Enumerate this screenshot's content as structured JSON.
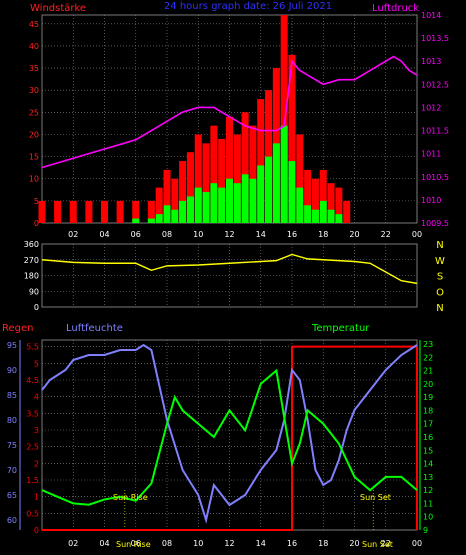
{
  "header": {
    "left_title": "Windstärke",
    "center_title": "24 hours graph date: 26 Juli 2021",
    "right_title": "Luftdruck"
  },
  "colors": {
    "wind_axis": "#ff2020",
    "wind_bar": "#ff0000",
    "gust_bar": "#00ff00",
    "pressure": "#ff00ff",
    "winddir": "#ffff00",
    "humidity": "#8080ff",
    "temperature": "#00ff00",
    "rain": "#ff0000",
    "grid": "#8a8a8a",
    "axis_text": "#ffffff",
    "sun_text": "#ffff00"
  },
  "time_ticks": [
    "02",
    "04",
    "06",
    "08",
    "10",
    "12",
    "14",
    "16",
    "18",
    "20",
    "22",
    "00"
  ],
  "charts": [
    {
      "id": "wind-pressure",
      "type": "bar+line",
      "left_axis": {
        "label": "Windstärke",
        "ticks": [
          "0",
          "5",
          "10",
          "15",
          "20",
          "25",
          "30",
          "35",
          "40",
          "45"
        ],
        "range": [
          0,
          47
        ]
      },
      "right_axis": {
        "label": "Luftdruck",
        "ticks": [
          "1009.5",
          "1010",
          "1010.5",
          "1011",
          "1011.5",
          "1012",
          "1012.5",
          "1013",
          "1013.5",
          "1014"
        ],
        "range": [
          1009.5,
          1014
        ]
      }
    },
    {
      "id": "wind-direction",
      "type": "line",
      "left_axis": {
        "ticks": [
          "0",
          "90",
          "180",
          "270",
          "360"
        ],
        "range": [
          0,
          360
        ]
      },
      "right_axis": {
        "ticks": [
          "N",
          "W",
          "S",
          "O",
          "N"
        ]
      }
    },
    {
      "id": "humidity-temp-rain",
      "type": "line",
      "top_labels": {
        "rain": "Regen",
        "humidity": "Luftfeuchte",
        "temperature": "Temperatur"
      },
      "rain_axis": {
        "ticks": [
          "0",
          "0.5",
          "1",
          "1.5",
          "2",
          "2.5",
          "3",
          "3.5",
          "4",
          "4.5",
          "5",
          "5.5"
        ],
        "range": [
          0,
          5.7
        ]
      },
      "humidity_axis": {
        "ticks": [
          "60",
          "65",
          "70",
          "75",
          "80",
          "85",
          "90",
          "95"
        ],
        "range": [
          58,
          96
        ]
      },
      "temp_axis": {
        "ticks": [
          "9",
          "10",
          "11",
          "12",
          "13",
          "14",
          "15",
          "16",
          "17",
          "18",
          "19",
          "20",
          "21",
          "22",
          "23"
        ],
        "range": [
          9,
          23.3
        ]
      },
      "sun_labels": {
        "rise": "Sun Rise",
        "set": "Sun Set",
        "rise_axis": "Sun Rise",
        "set_axis": "Sun Set"
      }
    }
  ],
  "chart_data": [
    {
      "type": "line",
      "title": "Luftdruck",
      "ylim": [
        1009.5,
        1014
      ],
      "x_hours": [
        0,
        1,
        2,
        3,
        4,
        5,
        6,
        7,
        8,
        9,
        10,
        11,
        12,
        13,
        14,
        14.5,
        15,
        15.5,
        16,
        16.5,
        17,
        18,
        19,
        20,
        21,
        22,
        22.5,
        23,
        23.5,
        24
      ],
      "values": [
        1010.7,
        1010.8,
        1010.9,
        1011.0,
        1011.1,
        1011.2,
        1011.3,
        1011.5,
        1011.7,
        1011.9,
        1012.0,
        1012.0,
        1011.8,
        1011.6,
        1011.5,
        1011.5,
        1011.5,
        1011.6,
        1013.0,
        1012.8,
        1012.7,
        1012.5,
        1012.6,
        1012.6,
        1012.8,
        1013.0,
        1013.1,
        1013.0,
        1012.8,
        1012.7
      ]
    },
    {
      "type": "bar",
      "title": "Windstärke",
      "ylim": [
        0,
        47
      ],
      "x_hours": [
        0,
        1,
        2,
        3,
        4,
        5,
        6,
        7,
        7.5,
        8,
        8.5,
        9,
        9.5,
        10,
        10.5,
        11,
        11.5,
        12,
        12.5,
        13,
        13.5,
        14,
        14.5,
        15,
        15.5,
        16,
        16.5,
        17,
        17.5,
        18,
        18.5,
        19,
        19.5,
        20,
        21,
        22,
        23,
        24
      ],
      "series": [
        {
          "name": "wind",
          "values": [
            5,
            5,
            5,
            5,
            5,
            5,
            5,
            5,
            8,
            12,
            10,
            14,
            16,
            20,
            18,
            22,
            19,
            24,
            20,
            25,
            22,
            28,
            30,
            35,
            47,
            38,
            20,
            12,
            10,
            12,
            9,
            8,
            5,
            0,
            0,
            0,
            0,
            0
          ]
        },
        {
          "name": "gust",
          "values": [
            0,
            0,
            0,
            0,
            0,
            0,
            1,
            1,
            2,
            4,
            3,
            5,
            6,
            8,
            7,
            9,
            8,
            10,
            9,
            11,
            10,
            13,
            15,
            18,
            22,
            14,
            8,
            4,
            3,
            5,
            3,
            2,
            0,
            0,
            0,
            0,
            0,
            0
          ]
        }
      ]
    },
    {
      "type": "line",
      "title": "",
      "ylim": [
        0,
        360
      ],
      "x_hours": [
        0,
        2,
        4,
        6,
        7,
        8,
        10,
        12,
        14,
        15,
        16,
        17,
        18,
        20,
        21,
        22,
        23,
        24
      ],
      "values": [
        270,
        255,
        250,
        250,
        210,
        235,
        240,
        250,
        260,
        265,
        300,
        275,
        270,
        260,
        250,
        200,
        150,
        135
      ]
    },
    {
      "type": "line",
      "title": "Luftfeuchte",
      "ylim": [
        58,
        96
      ],
      "x_hours": [
        0,
        0.5,
        1,
        1.5,
        2,
        3,
        4,
        5,
        6,
        6.5,
        7,
        8,
        8.5,
        9,
        10,
        10.5,
        11,
        12,
        13,
        14,
        14.5,
        15,
        15.5,
        16,
        16.5,
        17,
        17.5,
        18,
        18.5,
        19,
        19.5,
        20,
        21,
        22,
        23,
        24
      ],
      "values": [
        86,
        88,
        89,
        90,
        92,
        93,
        93,
        94,
        94,
        95,
        94,
        80,
        75,
        70,
        65,
        60,
        67,
        63,
        65,
        70,
        72,
        74,
        80,
        90,
        88,
        80,
        70,
        67,
        68,
        72,
        78,
        82,
        86,
        90,
        93,
        95
      ]
    },
    {
      "type": "line",
      "title": "Temperatur",
      "ylim": [
        9,
        23.3
      ],
      "x_hours": [
        0,
        1,
        2,
        3,
        4,
        5,
        6,
        7,
        8,
        8.5,
        9,
        10,
        11,
        12,
        13,
        14,
        15,
        16,
        16.5,
        17,
        18,
        19,
        20,
        21,
        22,
        23,
        24
      ],
      "values": [
        12,
        11.5,
        11,
        10.9,
        11.3,
        11.5,
        11.2,
        12.5,
        17,
        19,
        18,
        17,
        16,
        18,
        16.5,
        20,
        21,
        14,
        15.5,
        18,
        17,
        15.5,
        13,
        12,
        13,
        13,
        12
      ]
    },
    {
      "type": "line",
      "title": "Regen",
      "ylim": [
        0,
        5.7
      ],
      "x_hours": [
        0,
        16,
        16,
        24,
        24
      ],
      "values": [
        0,
        0,
        5.5,
        5.5,
        0
      ]
    }
  ]
}
